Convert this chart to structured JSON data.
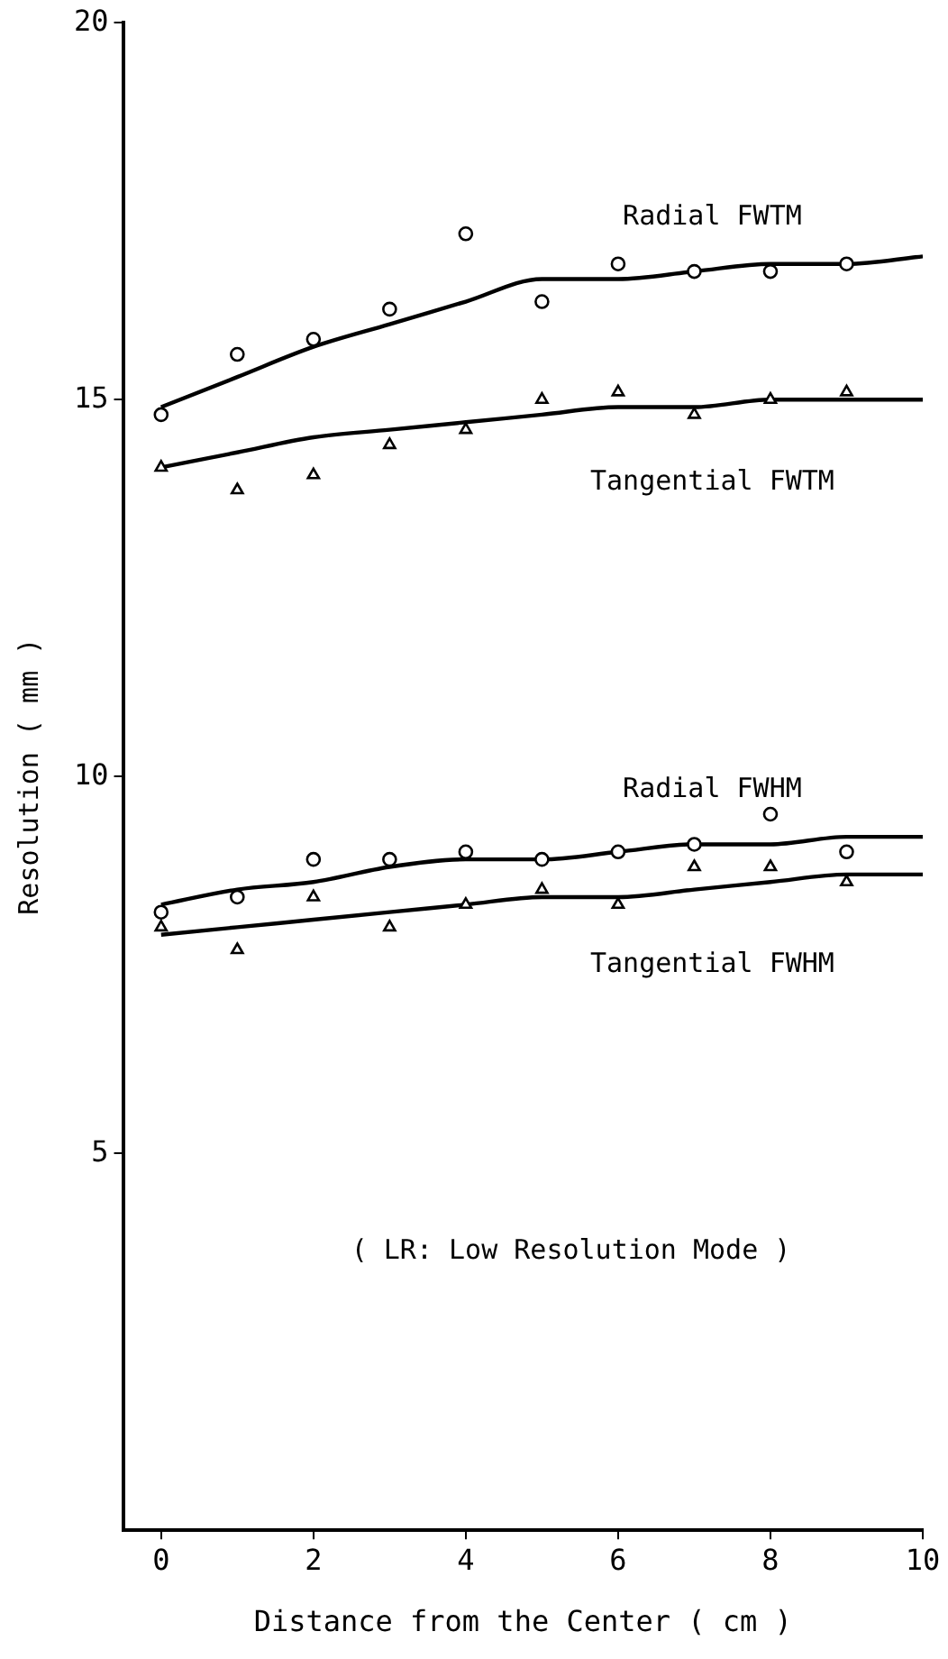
{
  "chart_data": {
    "type": "scatter",
    "xlabel": "Distance from the Center ( cm )",
    "ylabel": "Resolution ( mm )",
    "annotations": [
      "( LR: Low Resolution Mode )"
    ],
    "xlim": [
      -0.5,
      10
    ],
    "xticks": [
      0,
      2,
      4,
      6,
      8,
      10
    ],
    "ylim": [
      0,
      20
    ],
    "yticks": [
      5,
      10,
      15,
      20
    ],
    "grid": false,
    "legend": false,
    "series": [
      {
        "marker": "circle",
        "color": "#000000",
        "x": [
          0,
          1,
          2,
          3,
          4,
          5,
          6,
          7,
          8,
          9
        ],
        "values": [
          14.8,
          15.6,
          15.8,
          16.2,
          17.2,
          16.3,
          16.8,
          16.7,
          16.7,
          16.8
        ]
      },
      {
        "type": "line",
        "name": "Radial FWTM",
        "marker": "none",
        "color": "#000000",
        "x": [
          0,
          1,
          2,
          3,
          4,
          5,
          6,
          7,
          8,
          9,
          10
        ],
        "values": [
          14.9,
          15.3,
          15.7,
          16.0,
          16.3,
          16.6,
          16.6,
          16.7,
          16.8,
          16.8,
          16.9
        ]
      },
      {
        "marker": "triangle",
        "color": "#000000",
        "x": [
          0,
          1,
          2,
          3,
          4,
          5,
          6,
          7,
          8,
          9
        ],
        "values": [
          14.1,
          13.8,
          14.0,
          14.4,
          14.6,
          15.0,
          15.1,
          14.8,
          15.0,
          15.1
        ]
      },
      {
        "type": "line",
        "name": "Tangential FWTM",
        "marker": "none",
        "color": "#000000",
        "x": [
          0,
          1,
          2,
          3,
          4,
          5,
          6,
          7,
          8,
          9,
          10
        ],
        "values": [
          14.1,
          14.3,
          14.5,
          14.6,
          14.7,
          14.8,
          14.9,
          14.9,
          15.0,
          15.0,
          15.0
        ]
      },
      {
        "marker": "circle",
        "color": "#000000",
        "x": [
          0,
          1,
          2,
          3,
          4,
          5,
          6,
          7,
          8,
          9
        ],
        "values": [
          8.2,
          8.4,
          8.9,
          8.9,
          9.0,
          8.9,
          9.0,
          9.1,
          9.5,
          9.0
        ]
      },
      {
        "type": "line",
        "name": "Radial FWHM",
        "marker": "none",
        "color": "#000000",
        "x": [
          0,
          1,
          2,
          3,
          4,
          5,
          6,
          7,
          8,
          9,
          10
        ],
        "values": [
          8.3,
          8.5,
          8.6,
          8.8,
          8.9,
          8.9,
          9.0,
          9.1,
          9.1,
          9.2,
          9.2
        ]
      },
      {
        "marker": "triangle",
        "color": "#000000",
        "x": [
          0,
          1,
          2,
          3,
          4,
          5,
          6,
          7,
          8,
          9
        ],
        "values": [
          8.0,
          7.7,
          8.4,
          8.0,
          8.3,
          8.5,
          8.3,
          8.8,
          8.8,
          8.6
        ]
      },
      {
        "type": "line",
        "name": "Tangential FWHM",
        "marker": "none",
        "color": "#000000",
        "x": [
          0,
          1,
          2,
          3,
          4,
          5,
          6,
          7,
          8,
          9,
          10
        ],
        "values": [
          7.9,
          8.0,
          8.1,
          8.2,
          8.3,
          8.4,
          8.4,
          8.5,
          8.6,
          8.7,
          8.7
        ]
      }
    ]
  }
}
